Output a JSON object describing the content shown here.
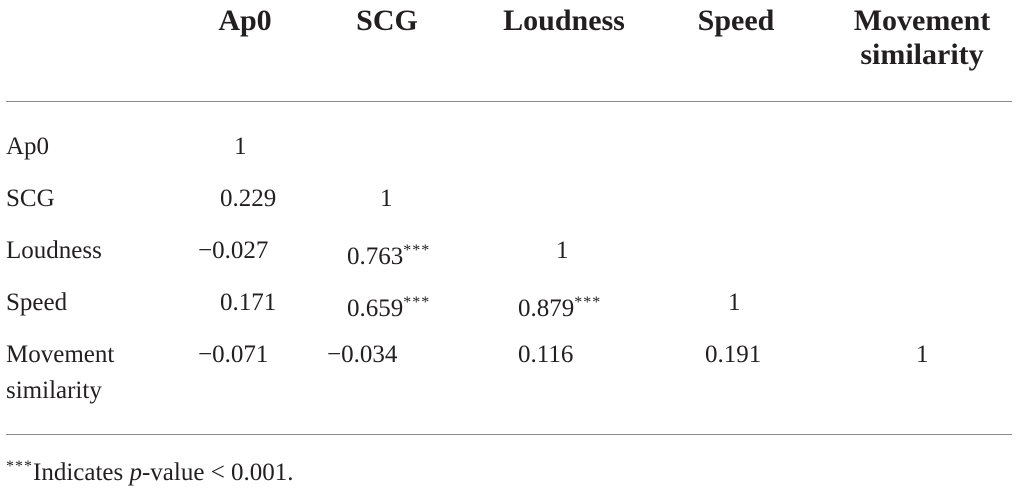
{
  "table": {
    "columns": [
      {
        "label": "Ap0"
      },
      {
        "label": "SCG"
      },
      {
        "label": "Loudness"
      },
      {
        "label": "Speed"
      },
      {
        "label_line1": "Movement",
        "label_line2": "similarity"
      }
    ],
    "rows": [
      {
        "label": "Ap0",
        "cells": [
          {
            "value": "1",
            "sig": ""
          }
        ]
      },
      {
        "label": "SCG",
        "cells": [
          {
            "value": "0.229",
            "sig": ""
          },
          {
            "value": "1",
            "sig": ""
          }
        ]
      },
      {
        "label": "Loudness",
        "cells": [
          {
            "value": "−0.027",
            "sig": ""
          },
          {
            "value": "0.763",
            "sig": "***"
          },
          {
            "value": "1",
            "sig": ""
          }
        ]
      },
      {
        "label": "Speed",
        "cells": [
          {
            "value": "0.171",
            "sig": ""
          },
          {
            "value": "0.659",
            "sig": "***"
          },
          {
            "value": "0.879",
            "sig": "***"
          },
          {
            "value": "1",
            "sig": ""
          }
        ]
      },
      {
        "label_line1": "Movement",
        "label_line2": "similarity",
        "cells": [
          {
            "value": "−0.071",
            "sig": ""
          },
          {
            "value": "−0.034",
            "sig": ""
          },
          {
            "value": "0.116",
            "sig": ""
          },
          {
            "value": "0.191",
            "sig": ""
          },
          {
            "value": "1",
            "sig": ""
          }
        ]
      }
    ]
  },
  "footnote": {
    "marker": "***",
    "text_before": "Indicates ",
    "p_var": "p",
    "text_after": "-value < 0.001."
  }
}
